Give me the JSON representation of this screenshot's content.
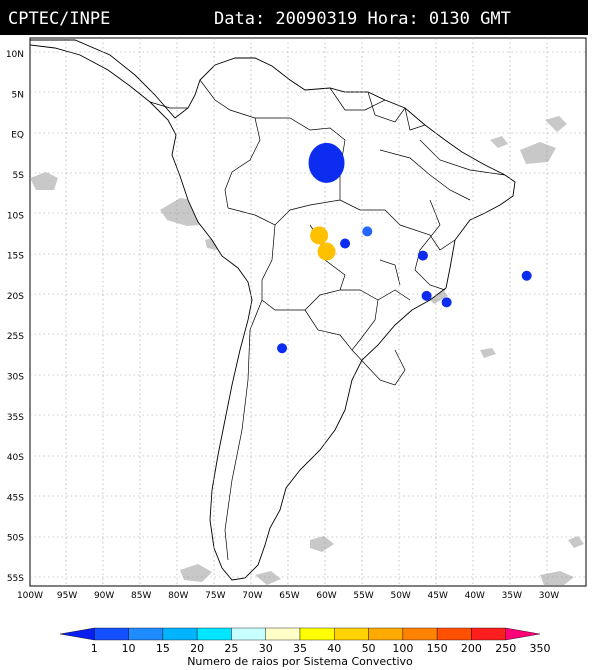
{
  "header": {
    "source": "CPTEC/INPE",
    "datetime": "Data: 20090319 Hora: 0130 GMT"
  },
  "map": {
    "lat_range": [
      -56,
      12
    ],
    "lon_range": [
      -100,
      -25
    ],
    "lat_ticks": [
      "10N",
      "5N",
      "EQ",
      "5S",
      "10S",
      "15S",
      "20S",
      "25S",
      "30S",
      "35S",
      "40S",
      "45S",
      "50S",
      "55S"
    ],
    "lon_ticks": [
      "100W",
      "95W",
      "90W",
      "85W",
      "80W",
      "75W",
      "70W",
      "65W",
      "60W",
      "55W",
      "50W",
      "45W",
      "40W",
      "35W",
      "30W"
    ],
    "convective_systems": [
      {
        "lat": -3.5,
        "lon": -60.0,
        "class": "1-10",
        "color": "#0c2cf0"
      },
      {
        "lat": -12.5,
        "lon": -61.0,
        "class": "40-50",
        "color": "#ffc000"
      },
      {
        "lat": -14.5,
        "lon": -60.0,
        "class": "40-50",
        "color": "#ffc000"
      },
      {
        "lat": -13.5,
        "lon": -57.5,
        "class": "1-10",
        "color": "#0c2cf0"
      },
      {
        "lat": -12.0,
        "lon": -54.5,
        "class": "10-15",
        "color": "#2466ff"
      },
      {
        "lat": -15.0,
        "lon": -47.0,
        "class": "1-10",
        "color": "#0c2cf0"
      },
      {
        "lat": -17.5,
        "lon": -33.0,
        "class": "1-10",
        "color": "#0c2cf0"
      },
      {
        "lat": -20.0,
        "lon": -46.5,
        "class": "1-10",
        "color": "#0c2cf0"
      },
      {
        "lat": -20.8,
        "lon": -43.8,
        "class": "1-10",
        "color": "#0c2cf0"
      },
      {
        "lat": -26.5,
        "lon": -66.0,
        "class": "1-10",
        "color": "#0c2cf0"
      }
    ]
  },
  "legend": {
    "labels": [
      "1",
      "10",
      "15",
      "20",
      "25",
      "30",
      "35",
      "40",
      "50",
      "100",
      "150",
      "200",
      "250",
      "350"
    ],
    "colors": [
      "#0a1ef0",
      "#1450ff",
      "#1e8cff",
      "#00b4ff",
      "#00e6ff",
      "#c8ffff",
      "#ffffc8",
      "#ffff00",
      "#ffd200",
      "#ffaa00",
      "#ff8200",
      "#ff5000",
      "#ff1e1e",
      "#ff0078"
    ],
    "caption": "Numero de raios por Sistema Convectivo"
  }
}
